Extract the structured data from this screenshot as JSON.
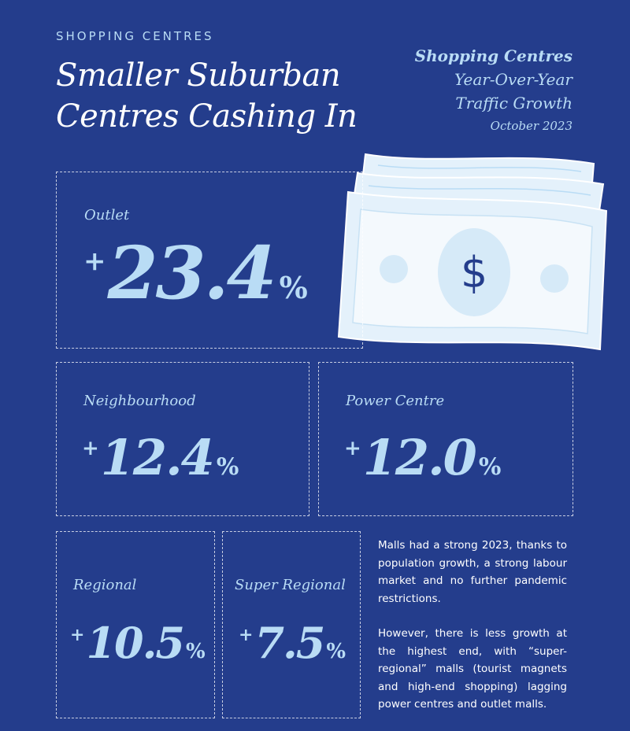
{
  "header": {
    "kicker": "SHOPPING CENTRES",
    "headline_line1": "Smaller Suburban",
    "headline_line2": "Centres Cashing In"
  },
  "subhead": {
    "line1": "Shopping Centres",
    "line2": "Year-Over-Year",
    "line3": "Traffic Growth",
    "date": "October 2023"
  },
  "stats": {
    "outlet": {
      "label": "Outlet",
      "plus": "+",
      "value": "23.4",
      "unit": "%"
    },
    "neighbourhood": {
      "label": "Neighbourhood",
      "plus": "+",
      "value": "12.4",
      "unit": "%"
    },
    "power_centre": {
      "label": "Power Centre",
      "plus": "+",
      "value": "12.0",
      "unit": "%"
    },
    "regional": {
      "label": "Regional",
      "plus": "+",
      "value": "10.5",
      "unit": "%"
    },
    "super_regional": {
      "label": "Super Regional",
      "plus": "+",
      "value": "7.5",
      "unit": "%"
    }
  },
  "body": {
    "paragraph1": "Malls had a strong 2023, thanks to population growth, a strong labour market and no further pandemic restrictions.",
    "paragraph2": "However, there is less growth at the highest end, with “super-regional” malls (tourist magnets and high-end shopping) lagging power centres and outlet malls."
  },
  "illustration": {
    "icon": "money-bills-icon",
    "symbol": "$",
    "bill_color": "#e4f1fb",
    "accent_color": "#243d8c"
  }
}
